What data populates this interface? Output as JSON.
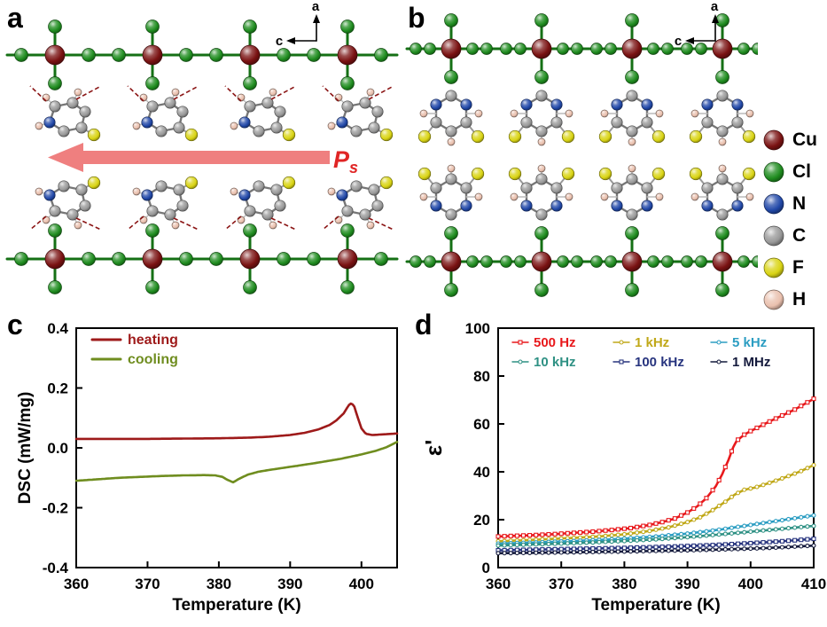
{
  "panels": {
    "a": {
      "label": "a",
      "axes": {
        "up": "a",
        "left": "c"
      },
      "polarization": {
        "symbol": "P",
        "sub": "s",
        "color": "#e02525"
      }
    },
    "b": {
      "label": "b",
      "axes": {
        "up": "a",
        "left": "c"
      }
    },
    "c": {
      "label": "c"
    },
    "d": {
      "label": "d"
    }
  },
  "legend": {
    "items": [
      {
        "symbol": "Cu",
        "color": "#7a1212"
      },
      {
        "symbol": "Cl",
        "color": "#1f8c1f"
      },
      {
        "symbol": "N",
        "color": "#2148a8"
      },
      {
        "symbol": "C",
        "color": "#999999"
      },
      {
        "symbol": "F",
        "color": "#d9d414"
      },
      {
        "symbol": "H",
        "color": "#eac0ae"
      }
    ]
  },
  "chart_data": [
    {
      "type": "line",
      "panel": "c",
      "title": "",
      "xlabel": "Temperature (K)",
      "ylabel": "DSC (mW/mg)",
      "xlim": [
        360,
        405
      ],
      "ylim": [
        -0.4,
        0.4
      ],
      "xticks": [
        360,
        370,
        380,
        390,
        400
      ],
      "xtick_labels": [
        "360",
        "370",
        "380",
        "390",
        "400"
      ],
      "ytick_values": [
        -0.4,
        -0.2,
        0,
        0.2,
        0.4
      ],
      "ytick_labels": [
        "-0.4",
        "-0.2",
        "0.0",
        "0.2",
        "0.4"
      ],
      "grid": false,
      "legend_position": "top-left",
      "series": [
        {
          "name": "heating",
          "color": "#9e1a1a",
          "marker": null,
          "x": [
            360,
            365,
            370,
            375,
            380,
            384,
            387,
            390,
            392,
            394,
            395.5,
            396.5,
            397.5,
            398.2,
            398.6,
            399,
            399.5,
            400,
            400.6,
            401.5,
            403,
            405
          ],
          "y": [
            0.03,
            0.03,
            0.03,
            0.031,
            0.032,
            0.034,
            0.037,
            0.043,
            0.05,
            0.062,
            0.076,
            0.092,
            0.115,
            0.142,
            0.15,
            0.138,
            0.1,
            0.065,
            0.047,
            0.043,
            0.045,
            0.048
          ]
        },
        {
          "name": "cooling",
          "color": "#6f8d1f",
          "marker": null,
          "x": [
            360,
            363,
            366,
            369,
            372,
            375,
            378,
            379.5,
            380.5,
            381.3,
            382,
            382.8,
            384,
            385.5,
            387,
            389,
            391,
            394,
            397,
            400,
            402,
            403.5,
            405
          ],
          "y": [
            -0.11,
            -0.105,
            -0.1,
            -0.097,
            -0.094,
            -0.092,
            -0.091,
            -0.092,
            -0.097,
            -0.108,
            -0.115,
            -0.104,
            -0.09,
            -0.08,
            -0.074,
            -0.067,
            -0.06,
            -0.049,
            -0.037,
            -0.022,
            -0.01,
            0.002,
            0.02
          ]
        }
      ]
    },
    {
      "type": "line",
      "panel": "d",
      "title": "",
      "xlabel": "Temperature (K)",
      "ylabel": "ε'",
      "xlim": [
        360,
        410
      ],
      "ylim": [
        0,
        100
      ],
      "xticks": [
        360,
        370,
        380,
        390,
        400,
        410
      ],
      "xtick_labels": [
        "360",
        "370",
        "380",
        "390",
        "400",
        "410"
      ],
      "ytick_values": [
        0,
        20,
        40,
        60,
        80,
        100
      ],
      "ytick_labels": [
        "0",
        "20",
        "40",
        "60",
        "80",
        "100"
      ],
      "grid": false,
      "legend_position": "top-inside",
      "series": [
        {
          "name": "500 Hz",
          "color": "#e8191c",
          "marker": "square",
          "x": [
            360,
            363,
            366,
            369,
            372,
            375,
            378,
            381,
            384,
            386,
            388,
            390,
            391.5,
            393,
            394.5,
            395.5,
            396.5,
            397.2,
            397.8,
            398.3,
            399,
            400,
            401.5,
            403,
            405,
            407,
            409,
            410
          ],
          "y": [
            13,
            13.3,
            13.6,
            14,
            14.5,
            15,
            15.7,
            16.5,
            17.8,
            19,
            20.5,
            23,
            25.5,
            29,
            34,
            39,
            45,
            50,
            53,
            54,
            55.5,
            57,
            59,
            61,
            63.5,
            66,
            69,
            70.5
          ]
        },
        {
          "name": "1 kHz",
          "color": "#c0a818",
          "marker": "circle",
          "x": [
            360,
            364,
            368,
            372,
            376,
            380,
            384,
            387,
            390,
            392,
            394,
            396,
            397.5,
            399,
            400.5,
            402,
            404,
            406,
            408,
            410
          ],
          "y": [
            11,
            11.4,
            11.9,
            12.4,
            13,
            13.9,
            15.3,
            16.8,
            19,
            21,
            24,
            27.5,
            30.5,
            32.5,
            33.3,
            34.5,
            36.3,
            38.2,
            40.3,
            42.8
          ]
        },
        {
          "name": "5 kHz",
          "color": "#2b9dc2",
          "marker": "circle",
          "x": [
            360,
            365,
            370,
            375,
            380,
            385,
            390,
            393,
            396,
            398,
            400,
            402,
            404,
            406,
            408,
            410
          ],
          "y": [
            10,
            10.4,
            10.9,
            11.4,
            12.1,
            13,
            14.2,
            15.1,
            16.2,
            17,
            17.8,
            18.6,
            19.4,
            20.2,
            21,
            21.8
          ]
        },
        {
          "name": "10 kHz",
          "color": "#2f9184",
          "marker": "circle",
          "x": [
            360,
            365,
            370,
            375,
            380,
            385,
            390,
            395,
            400,
            405,
            410
          ],
          "y": [
            9.2,
            9.6,
            10,
            10.5,
            11.1,
            11.8,
            12.7,
            13.8,
            15,
            16.2,
            17.4
          ]
        },
        {
          "name": "100 kHz",
          "color": "#28357f",
          "marker": "square",
          "x": [
            360,
            370,
            380,
            388,
            394,
            400,
            405,
            410
          ],
          "y": [
            7.2,
            7.7,
            8.2,
            8.8,
            9.4,
            10.2,
            11,
            12
          ]
        },
        {
          "name": "1 MHz",
          "color": "#141a3c",
          "marker": "circle",
          "x": [
            360,
            370,
            380,
            390,
            396,
            402,
            406,
            410
          ],
          "y": [
            6.0,
            6.3,
            6.7,
            7.2,
            7.6,
            8.1,
            8.6,
            9.2
          ]
        }
      ]
    }
  ]
}
